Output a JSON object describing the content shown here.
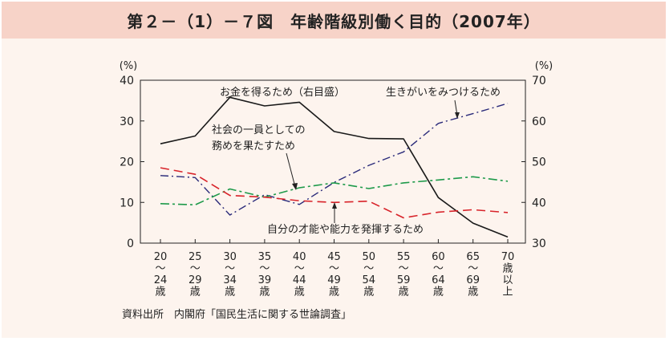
{
  "title": "第２－（1）－７図　年齢階級別働く目的（2007年）",
  "source": "資料出所　内閣府「国民生活に関する世論調査」",
  "colors": {
    "panel_bg": "#fdf4ee",
    "title_bg": "#f7d3c8",
    "money": "#1a1a1a",
    "purpose": "#2a2a7a",
    "duty": "#1e9a4a",
    "talent": "#d8232a"
  },
  "chart_data": {
    "type": "line",
    "categories": [
      [
        "20",
        "～",
        "24",
        "歳"
      ],
      [
        "25",
        "～",
        "29",
        "歳"
      ],
      [
        "30",
        "～",
        "34",
        "歳"
      ],
      [
        "35",
        "～",
        "39",
        "歳"
      ],
      [
        "40",
        "～",
        "44",
        "歳"
      ],
      [
        "45",
        "～",
        "49",
        "歳"
      ],
      [
        "50",
        "～",
        "54",
        "歳"
      ],
      [
        "55",
        "～",
        "59",
        "歳"
      ],
      [
        "60",
        "～",
        "64",
        "歳"
      ],
      [
        "65",
        "～",
        "69",
        "歳"
      ],
      [
        "70",
        "歳",
        "以",
        "上"
      ]
    ],
    "left_axis": {
      "unit": "(%)",
      "ylim": [
        0,
        40
      ],
      "ticks": [
        0,
        10,
        20,
        30,
        40
      ]
    },
    "right_axis": {
      "unit": "(%)",
      "ylim": [
        30,
        70
      ],
      "ticks": [
        30,
        40,
        50,
        60,
        70
      ]
    },
    "series": [
      {
        "name": "お金を得るため（右目盛）",
        "axis": "right",
        "style": "solid",
        "values": [
          54.4,
          56.3,
          65.8,
          63.7,
          64.6,
          57.4,
          55.7,
          55.6,
          41.2,
          34.9,
          31.5
        ]
      },
      {
        "name": "生きがいをみつけるため",
        "axis": "left",
        "style": "dashdot",
        "values": [
          16.6,
          16.1,
          6.9,
          11.9,
          9.5,
          14.9,
          19.1,
          22.4,
          29.4,
          31.8,
          34.3
        ]
      },
      {
        "name": "社会の一員としての務めを果たすため",
        "axis": "left",
        "style": "longdash",
        "values": [
          9.7,
          9.4,
          13.3,
          11.3,
          13.6,
          14.8,
          13.4,
          14.8,
          15.5,
          16.3,
          15.2
        ]
      },
      {
        "name": "自分の才能や能力を発揮するため",
        "axis": "left",
        "style": "dashed",
        "values": [
          18.5,
          16.9,
          11.7,
          11.3,
          10.4,
          10.0,
          10.3,
          6.2,
          7.6,
          8.2,
          7.5
        ]
      }
    ],
    "annotations": [
      {
        "text": "お金を得るため（右目盛）"
      },
      {
        "text": "生きがいをみつけるため"
      },
      {
        "lines": [
          "社会の一員としての",
          "務めを果たすため"
        ]
      },
      {
        "text": "自分の才能や能力を発揮するため"
      }
    ],
    "grid": false,
    "legend": "inline annotations"
  }
}
